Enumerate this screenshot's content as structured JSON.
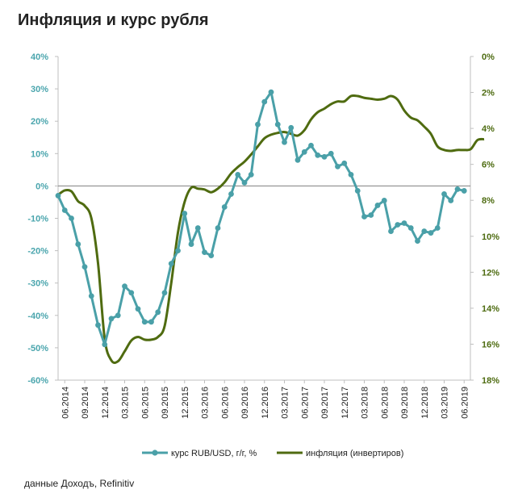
{
  "title": "Инфляция и курс рубля",
  "source": "данные Доходъ, Refinitiv",
  "chart_data": {
    "type": "line",
    "title": "Инфляция и курс рубля",
    "colors": {
      "rub": "#4aa0a8",
      "infl": "#4f6b10",
      "rub_axis": "#4aa5ad",
      "infl_axis": "#4d6b10"
    },
    "left_axis": {
      "min": -60,
      "max": 40,
      "step": 10,
      "ticks": [
        "40%",
        "30%",
        "20%",
        "10%",
        "0%",
        "-10%",
        "-20%",
        "-30%",
        "-40%",
        "-50%",
        "-60%"
      ]
    },
    "right_axis": {
      "min": 0,
      "max": 18,
      "inverted": true,
      "ticks": [
        "0%",
        "2%",
        "4%",
        "6%",
        "8%",
        "10%",
        "12%",
        "14%",
        "16%",
        "18%"
      ]
    },
    "x_labels": [
      "06.2014",
      "09.2014",
      "12.2014",
      "03.2015",
      "06.2015",
      "09.2015",
      "12.2015",
      "03.2016",
      "06.2016",
      "09.2016",
      "12.2016",
      "03.2017",
      "06.2017",
      "09.2017",
      "12.2017",
      "03.2018",
      "06.2018",
      "09.2018",
      "12.2018",
      "03.2019",
      "06.2019"
    ],
    "x_start": "05.2014",
    "series": [
      {
        "name": "курс RUB/USD, г/г, %",
        "axis": "left",
        "values": [
          -3,
          -7.5,
          -10,
          -18,
          -25,
          -34,
          -43,
          -49,
          -41,
          -40,
          -31,
          -33,
          -38,
          -42,
          -42,
          -39,
          -33,
          -24,
          -20,
          -8.5,
          -18,
          -13,
          -20.5,
          -21.5,
          -13,
          -6.5,
          -2.5,
          3.5,
          1,
          3.5,
          19,
          26,
          29,
          19,
          13.5,
          18,
          8,
          10.5,
          12.5,
          9.5,
          9,
          10,
          6,
          7,
          3.5,
          -1.5,
          -9.5,
          -9,
          -6,
          -4.5,
          -14,
          -12,
          -11.5,
          -13,
          -17,
          -14,
          -14.5,
          -13,
          -2.5,
          -4.5,
          -1,
          -1.5
        ]
      },
      {
        "name": "инфляция (инвертиров)",
        "axis": "right",
        "values": [
          7.7,
          7.45,
          7.5,
          8.05,
          8.3,
          9.0,
          11.5,
          15.7,
          16.9,
          16.95,
          16.4,
          15.8,
          15.6,
          15.75,
          15.75,
          15.6,
          15.0,
          12.6,
          9.8,
          8.1,
          7.3,
          7.35,
          7.4,
          7.55,
          7.35,
          7.0,
          6.5,
          6.15,
          5.85,
          5.45,
          5.0,
          4.55,
          4.35,
          4.25,
          4.2,
          4.3,
          4.4,
          4.1,
          3.5,
          3.1,
          2.9,
          2.65,
          2.5,
          2.5,
          2.2,
          2.2,
          2.3,
          2.35,
          2.4,
          2.35,
          2.2,
          2.4,
          3.0,
          3.4,
          3.55,
          3.9,
          4.3,
          5.0,
          5.2,
          5.25,
          5.2,
          5.2,
          5.15,
          4.65,
          4.6
        ]
      }
    ]
  },
  "legend": {
    "rub_label": "курс RUB/USD,  г/г, %",
    "infl_label": "инфляция (инвертиров)"
  }
}
